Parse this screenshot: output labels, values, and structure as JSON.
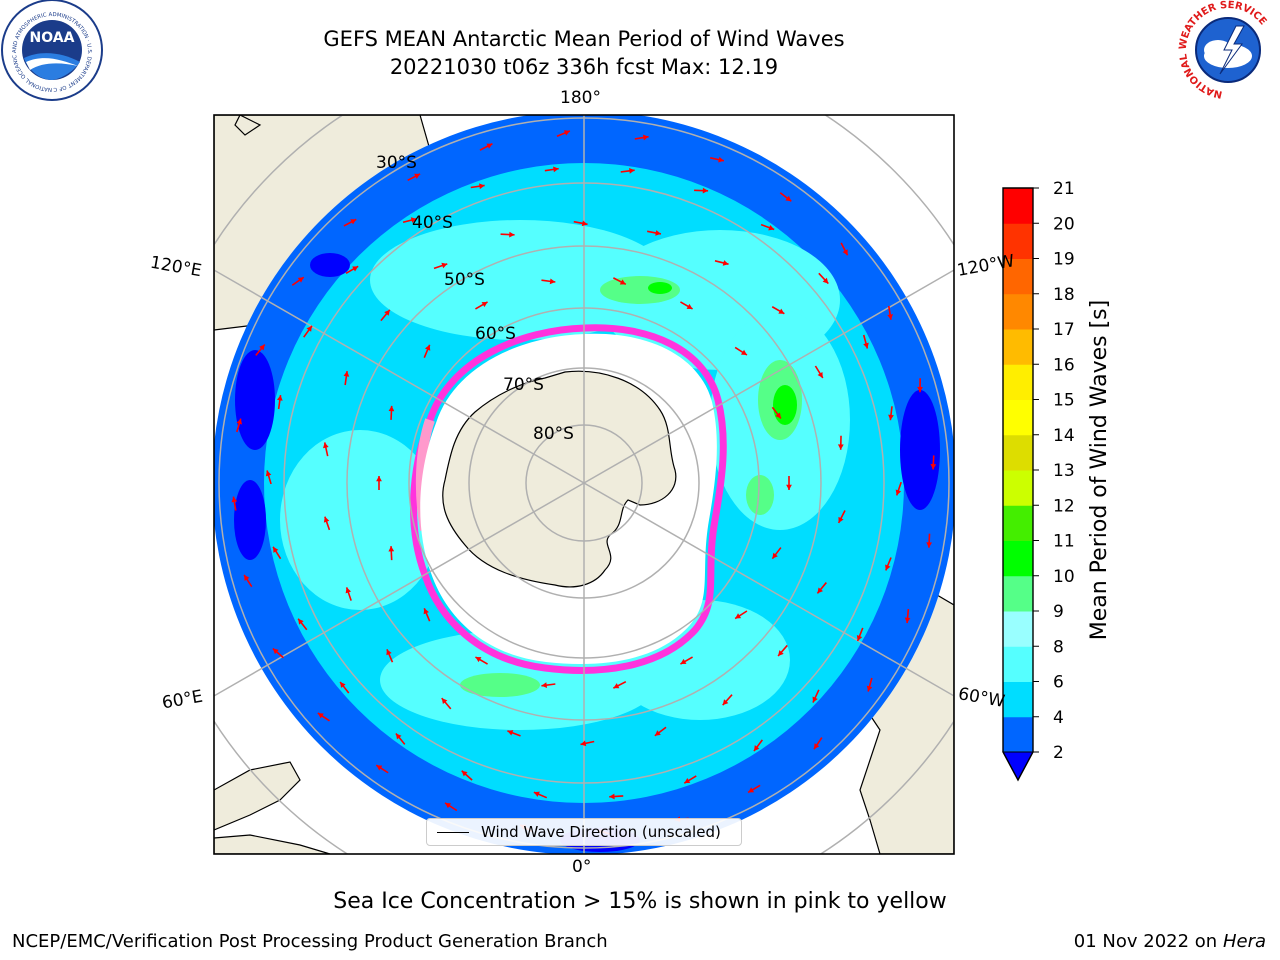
{
  "title": {
    "line1": "GEFS MEAN Antarctic Mean Period of Wind Waves",
    "line2": "20221030 t06z 336h fcst   Max: 12.19"
  },
  "map": {
    "projection": "south-polar-stereographic",
    "longitude_labels": {
      "top": "180°",
      "bottom": "0°",
      "left_upper": "120°E",
      "left_lower": "60°E",
      "right_upper": "120°W",
      "right_lower": "60°W"
    },
    "latitude_labels": [
      "30°S",
      "40°S",
      "50°S",
      "60°S",
      "70°S",
      "80°S"
    ],
    "legend_label": "Wind Wave Direction (unscaled)",
    "arrow_color": "#ff0000",
    "land_color": "#efecdc",
    "sea_ice_colors": [
      "#ff33dd",
      "#ff99cc",
      "#ffbb44"
    ]
  },
  "colorbar": {
    "label": "Mean Period of Wind Waves [s]",
    "ticks": [
      "2",
      "4",
      "6",
      "8",
      "9",
      "10",
      "11",
      "12",
      "13",
      "14",
      "15",
      "16",
      "17",
      "18",
      "19",
      "20",
      "21"
    ],
    "extend": "min",
    "under_color": "#0000ff",
    "colors": [
      "#0066ff",
      "#00ddff",
      "#55ffff",
      "#99ffff",
      "#55ff88",
      "#00ff00",
      "#44ee00",
      "#ccff00",
      "#dddd00",
      "#ffff00",
      "#ffee00",
      "#ffbb00",
      "#ff8800",
      "#ff6600",
      "#ff3300",
      "#ff0000"
    ]
  },
  "caption": "Sea Ice Concentration > 15% is shown in pink to yellow",
  "footer": {
    "left": "NCEP/EMC/Verification Post Processing Product Generation Branch",
    "right_date": "01 Nov 2022 on",
    "right_host": "Hera"
  },
  "logos": {
    "noaa": {
      "text": "NOAA",
      "ring_text": "NATIONAL OCEANIC AND ATMOSPHERIC ADMINISTRATION · U.S. DEPARTMENT OF COMMERCE"
    },
    "nws": {
      "ring_text": "NATIONAL WEATHER SERVICE"
    }
  }
}
